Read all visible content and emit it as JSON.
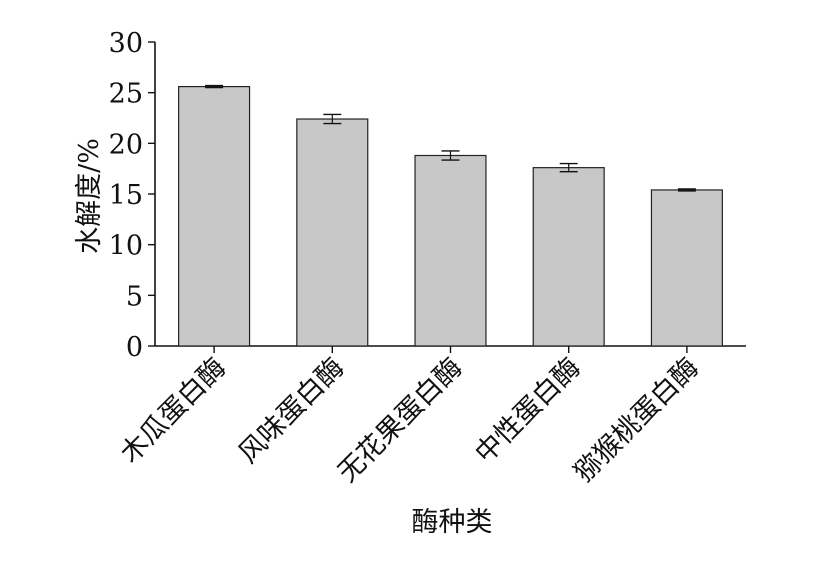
{
  "chart_data": {
    "type": "bar",
    "categories": [
      "木瓜蛋白酶",
      "风味蛋白酶",
      "无花果蛋白酶",
      "中性蛋白酶",
      "猕猴桃蛋白酶"
    ],
    "values": [
      25.6,
      22.4,
      18.8,
      17.6,
      15.4
    ],
    "errors": [
      0.1,
      0.45,
      0.45,
      0.4,
      0.1
    ],
    "xlabel": "酶种类",
    "ylabel": "水解度/%",
    "ylim": [
      0,
      30
    ],
    "yticks": [
      0,
      5,
      10,
      15,
      20,
      25,
      30
    ],
    "bar_color": "#c8c8c8",
    "edge_color": "#222222",
    "grid": false,
    "legend": "none"
  }
}
